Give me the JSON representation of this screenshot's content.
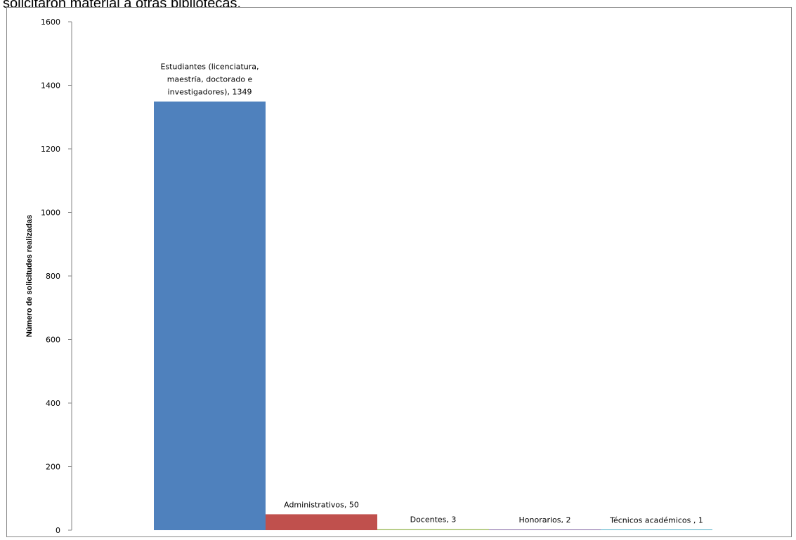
{
  "caption": "solicitaron material a otras bibliotecas.",
  "chart_data": {
    "type": "bar",
    "title": "",
    "xlabel": "",
    "ylabel": "Número de solicitudes realizadas",
    "ylim": [
      0,
      1600
    ],
    "yticks": [
      0,
      200,
      400,
      600,
      800,
      1000,
      1200,
      1400,
      1600
    ],
    "yticks_text": [
      "0",
      "200",
      "400",
      "600",
      "800",
      "1000",
      "1200",
      "1400",
      "1600"
    ],
    "grid": false,
    "legend": "none",
    "categories": [
      "Estudiantes (licenciatura, maestría, doctorado e investigadores)",
      "Administrativos",
      "Docentes",
      "Honorarios",
      "Técnicos académicos"
    ],
    "values": [
      1349,
      50,
      3,
      2,
      1
    ],
    "data_labels": [
      [
        "Estudiantes (licenciatura,",
        "maestría, doctorado e",
        "investigadores), 1349"
      ],
      [
        "Administrativos, 50"
      ],
      [
        "Docentes, 3"
      ],
      [
        "Honorarios, 2"
      ],
      [
        "Técnicos académicos , 1"
      ]
    ],
    "colors": [
      "#4f81bd",
      "#c0504d",
      "#9bbb59",
      "#8064a2",
      "#4bacc6"
    ]
  }
}
